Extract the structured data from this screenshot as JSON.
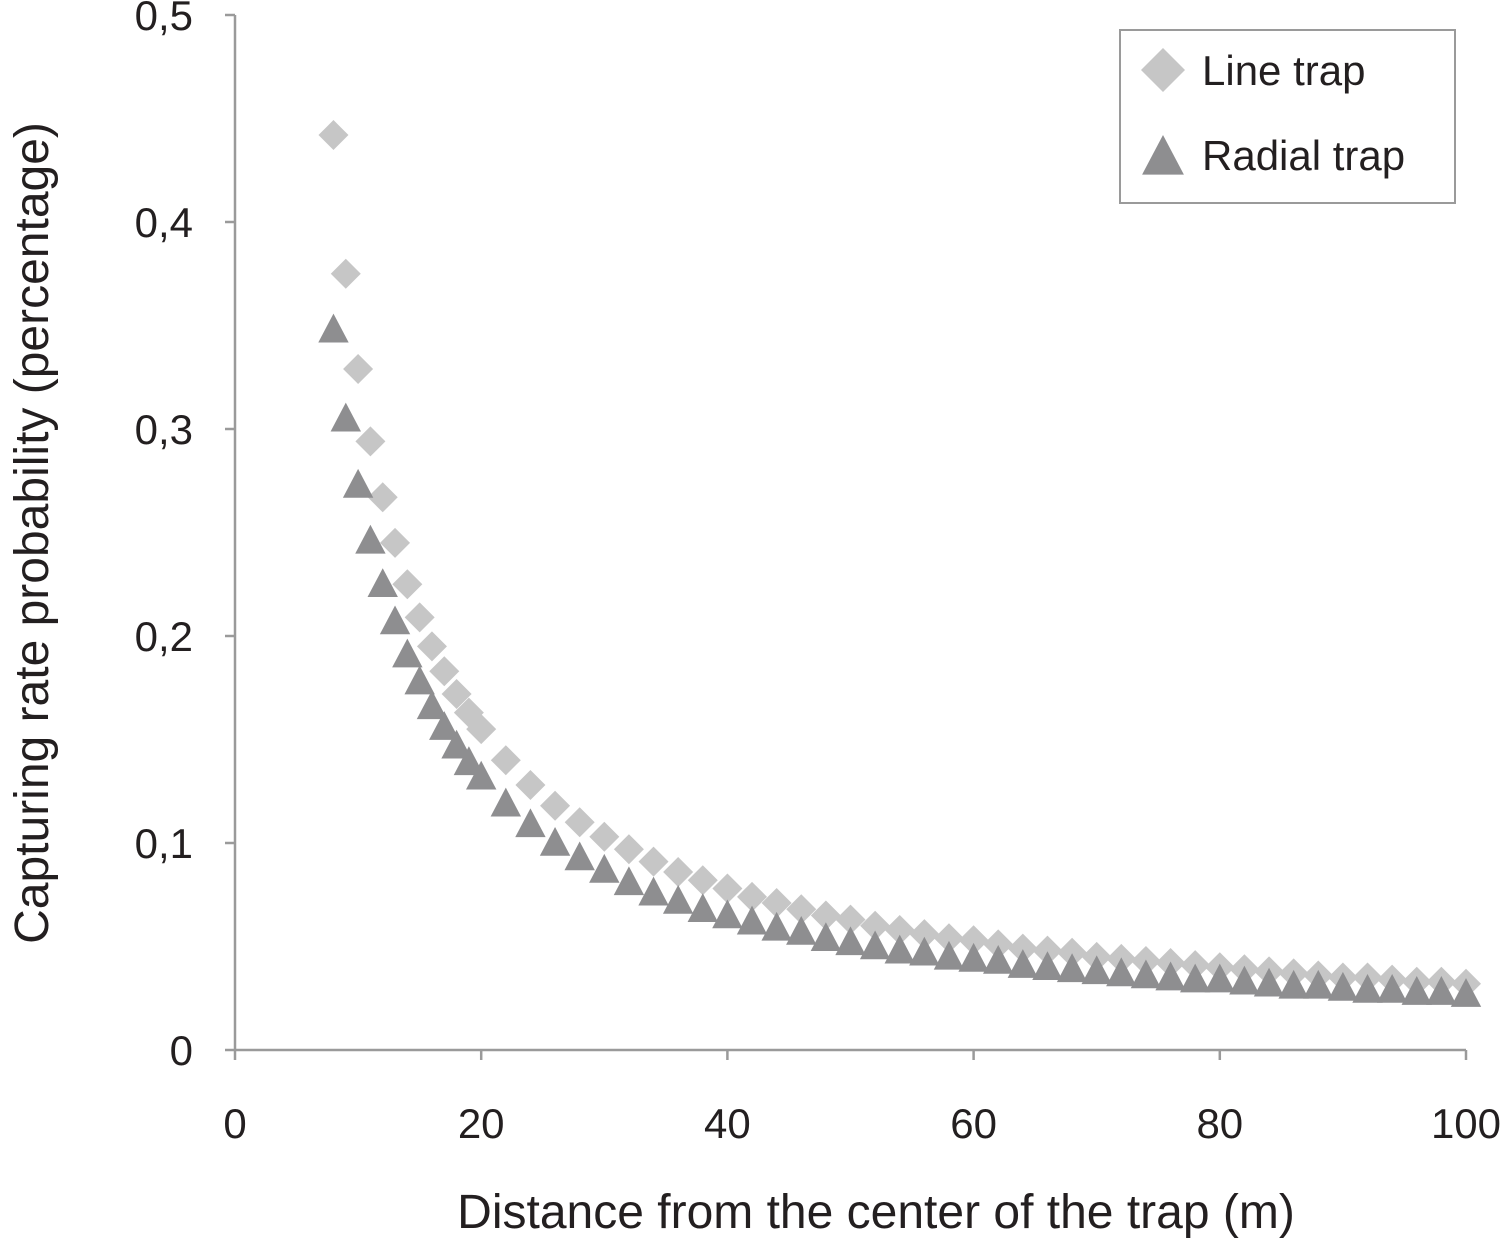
{
  "chart_data": {
    "type": "scatter",
    "title": "",
    "xlabel": "Distance from the center of the trap (m)",
    "ylabel": "Capturing rate probability (percentage)",
    "xlim": [
      0,
      100
    ],
    "ylim": [
      0,
      0.5
    ],
    "x_ticks": [
      "0",
      "20",
      "40",
      "60",
      "80",
      "100"
    ],
    "y_ticks": [
      "0",
      "0,1",
      "0,2",
      "0,3",
      "0,4",
      "0,5"
    ],
    "grid": false,
    "legend_position": "top-right",
    "series": [
      {
        "name": "Line trap",
        "marker": "diamond",
        "color": "#c6c6c6",
        "x": [
          8,
          9,
          10,
          11,
          12,
          13,
          14,
          15,
          16,
          17,
          18,
          19,
          20,
          22,
          24,
          26,
          28,
          30,
          32,
          34,
          36,
          38,
          40,
          42,
          44,
          46,
          48,
          50,
          52,
          54,
          56,
          58,
          60,
          62,
          64,
          66,
          68,
          70,
          72,
          74,
          76,
          78,
          80,
          82,
          84,
          86,
          88,
          90,
          92,
          94,
          96,
          98,
          100
        ],
        "y": [
          0.442,
          0.375,
          0.329,
          0.294,
          0.267,
          0.245,
          0.225,
          0.209,
          0.195,
          0.183,
          0.172,
          0.163,
          0.155,
          0.14,
          0.128,
          0.118,
          0.11,
          0.103,
          0.097,
          0.091,
          0.086,
          0.082,
          0.078,
          0.074,
          0.071,
          0.068,
          0.065,
          0.063,
          0.06,
          0.058,
          0.056,
          0.054,
          0.053,
          0.051,
          0.049,
          0.048,
          0.047,
          0.045,
          0.044,
          0.043,
          0.042,
          0.041,
          0.04,
          0.039,
          0.038,
          0.037,
          0.036,
          0.035,
          0.035,
          0.034,
          0.033,
          0.033,
          0.032
        ]
      },
      {
        "name": "Radial trap",
        "marker": "triangle",
        "color": "#8e8e90",
        "x": [
          8,
          9,
          10,
          11,
          12,
          13,
          14,
          15,
          16,
          17,
          18,
          19,
          20,
          22,
          24,
          26,
          28,
          30,
          32,
          34,
          36,
          38,
          40,
          42,
          44,
          46,
          48,
          50,
          52,
          54,
          56,
          58,
          60,
          62,
          64,
          66,
          68,
          70,
          72,
          74,
          76,
          78,
          80,
          82,
          84,
          86,
          88,
          90,
          92,
          94,
          96,
          98,
          100
        ],
        "y": [
          0.348,
          0.305,
          0.273,
          0.246,
          0.225,
          0.207,
          0.191,
          0.178,
          0.166,
          0.156,
          0.147,
          0.139,
          0.132,
          0.119,
          0.109,
          0.1,
          0.093,
          0.087,
          0.081,
          0.076,
          0.072,
          0.068,
          0.065,
          0.062,
          0.059,
          0.057,
          0.054,
          0.052,
          0.05,
          0.048,
          0.047,
          0.045,
          0.044,
          0.043,
          0.041,
          0.04,
          0.039,
          0.038,
          0.037,
          0.036,
          0.035,
          0.034,
          0.034,
          0.033,
          0.032,
          0.031,
          0.031,
          0.03,
          0.029,
          0.029,
          0.028,
          0.028,
          0.027
        ]
      }
    ]
  }
}
